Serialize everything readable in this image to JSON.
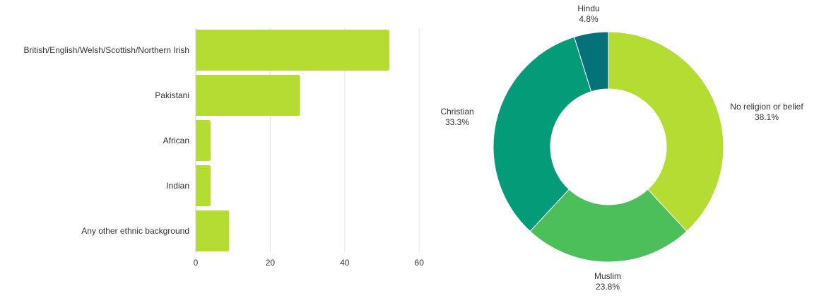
{
  "chart_data": [
    {
      "type": "bar",
      "orientation": "horizontal",
      "categories": [
        "British/English/Welsh/Scottish/Northern Irish",
        "Pakistani",
        "African",
        "Indian",
        "Any other ethnic background"
      ],
      "values": [
        52,
        28,
        4,
        4,
        9
      ],
      "xlim": [
        0,
        60
      ],
      "x_ticks": [
        "0",
        "20",
        "40",
        "60"
      ],
      "grid": true,
      "color": "#b5dc33"
    },
    {
      "type": "pie",
      "donut": true,
      "slices": [
        {
          "label": "No religion or belief",
          "value": 38.1,
          "value_label": "38.1%",
          "color": "#b5dc33"
        },
        {
          "label": "Muslim",
          "value": 23.8,
          "value_label": "23.8%",
          "color": "#4cbf5a"
        },
        {
          "label": "Christian",
          "value": 33.3,
          "value_label": "33.3%",
          "color": "#049b78"
        },
        {
          "label": "Hindu",
          "value": 4.8,
          "value_label": "4.8%",
          "color": "#05727a"
        }
      ]
    }
  ]
}
